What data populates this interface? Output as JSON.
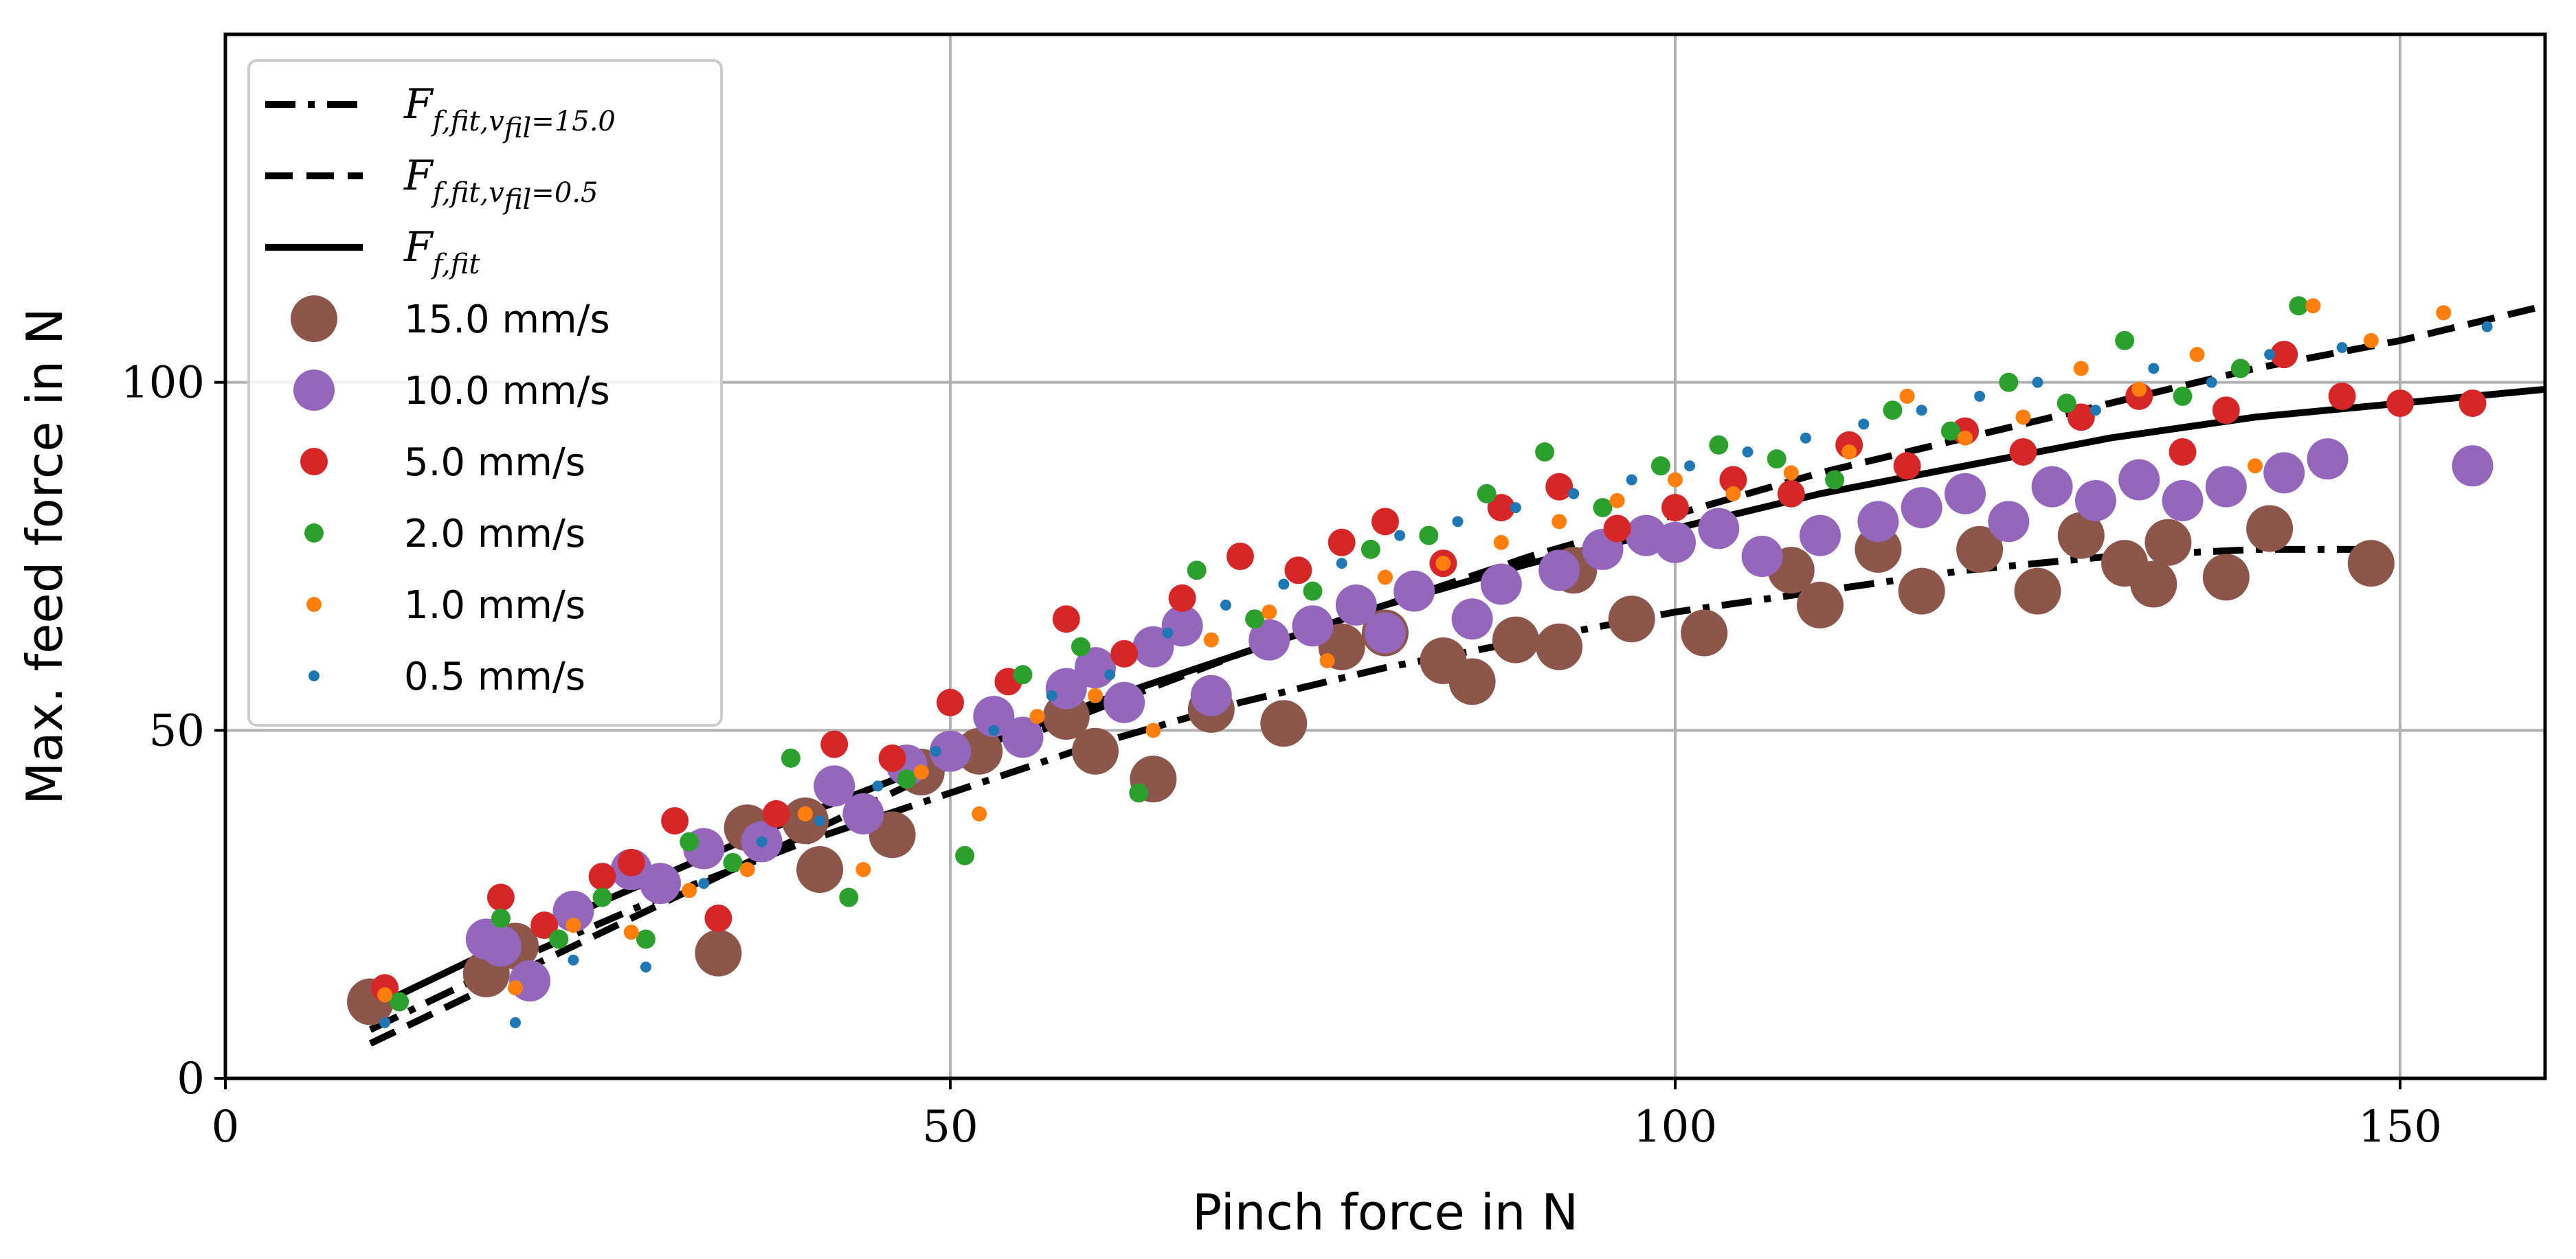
{
  "chart_data": {
    "type": "scatter",
    "xlabel": "Pinch force in N",
    "ylabel": "Max. feed force in N",
    "xlim": [
      0,
      160
    ],
    "ylim": [
      0,
      150
    ],
    "xticks": [
      0,
      50,
      100,
      150
    ],
    "yticks": [
      0,
      50,
      100
    ],
    "grid": true,
    "legend_position": "upper-left",
    "fits": [
      {
        "name": "F_{f,fit,v_fil=15.0}",
        "label_main": "F",
        "label_sub": "f,fit,v",
        "label_subsub": "fil",
        "label_tail": "=15.0",
        "style": "dashdot",
        "x": [
          10,
          20,
          30,
          40,
          50,
          60,
          70,
          80,
          90,
          100,
          110,
          120,
          130,
          140,
          148
        ],
        "y": [
          7,
          17,
          26,
          34,
          41,
          48,
          54,
          59,
          63,
          67,
          70,
          73,
          75,
          76,
          76
        ]
      },
      {
        "name": "F_{f,fit,v_fil=0.5}",
        "label_main": "F",
        "label_sub": "f,fit,v",
        "label_subsub": "fil",
        "label_tail": "=0.5",
        "style": "dashed",
        "x": [
          10,
          20,
          30,
          40,
          50,
          60,
          70,
          80,
          90,
          100,
          110,
          120,
          130,
          140,
          150,
          160
        ],
        "y": [
          5,
          15,
          25,
          35,
          45,
          53,
          61,
          68,
          75,
          81,
          87,
          92,
          97,
          102,
          106,
          111
        ]
      },
      {
        "name": "F_{f,fit}",
        "label_main": "F",
        "label_sub": "f,fit",
        "label_subsub": "",
        "label_tail": "",
        "style": "solid",
        "x": [
          10,
          20,
          30,
          40,
          50,
          60,
          70,
          80,
          90,
          100,
          110,
          120,
          130,
          140,
          150,
          160
        ],
        "y": [
          10,
          20,
          29,
          38,
          46,
          54,
          61,
          68,
          74,
          79,
          84,
          88,
          92,
          95,
          97,
          99
        ]
      }
    ],
    "series": [
      {
        "name": "15.0 mm/s",
        "color": "#8c564b",
        "size": 34,
        "x": [
          10,
          18,
          20,
          34,
          36,
          40,
          41,
          46,
          48,
          52,
          58,
          60,
          64,
          68,
          73,
          77,
          80,
          84,
          86,
          89,
          92,
          93,
          97,
          102,
          108,
          110,
          114,
          117,
          121,
          125,
          128,
          131,
          133,
          134,
          138,
          141,
          148
        ],
        "y": [
          11,
          15,
          19,
          18,
          36,
          37,
          30,
          35,
          44,
          47,
          52,
          47,
          43,
          53,
          51,
          62,
          64,
          60,
          57,
          63,
          62,
          73,
          66,
          64,
          73,
          68,
          76,
          70,
          76,
          70,
          78,
          74,
          71,
          77,
          72,
          79,
          74
        ]
      },
      {
        "name": "10.0 mm/s",
        "color": "#9467bd",
        "size": 30,
        "x": [
          18,
          19,
          21,
          24,
          28,
          30,
          33,
          37,
          42,
          44,
          47,
          50,
          53,
          55,
          58,
          60,
          62,
          64,
          66,
          68,
          72,
          75,
          78,
          80,
          82,
          86,
          88,
          92,
          95,
          98,
          100,
          103,
          106,
          110,
          114,
          117,
          120,
          123,
          126,
          129,
          132,
          135,
          138,
          142,
          145,
          155
        ],
        "y": [
          20,
          19,
          14,
          24,
          30,
          28,
          33,
          34,
          42,
          38,
          45,
          47,
          52,
          49,
          56,
          59,
          54,
          62,
          65,
          55,
          63,
          65,
          68,
          64,
          70,
          66,
          71,
          73,
          76,
          78,
          77,
          79,
          75,
          78,
          80,
          82,
          84,
          80,
          85,
          83,
          86,
          83,
          85,
          87,
          89,
          88
        ]
      },
      {
        "name": "5.0 mm/s",
        "color": "#d62728",
        "size": 20,
        "x": [
          11,
          19,
          22,
          26,
          28,
          31,
          34,
          38,
          42,
          46,
          50,
          54,
          58,
          62,
          66,
          70,
          74,
          77,
          80,
          84,
          88,
          92,
          96,
          100,
          104,
          108,
          112,
          116,
          120,
          124,
          128,
          132,
          135,
          138,
          142,
          146,
          150,
          155
        ],
        "y": [
          13,
          26,
          22,
          29,
          31,
          37,
          23,
          38,
          48,
          46,
          54,
          57,
          66,
          61,
          69,
          75,
          73,
          77,
          80,
          74,
          82,
          85,
          79,
          82,
          86,
          84,
          91,
          88,
          93,
          90,
          95,
          98,
          90,
          96,
          104,
          98,
          97,
          97
        ]
      },
      {
        "name": "2.0 mm/s",
        "color": "#2ca02c",
        "size": 14,
        "x": [
          12,
          19,
          23,
          26,
          29,
          32,
          35,
          39,
          43,
          47,
          51,
          55,
          59,
          63,
          67,
          71,
          75,
          79,
          83,
          87,
          91,
          95,
          99,
          103,
          107,
          111,
          115,
          119,
          123,
          127,
          131,
          135,
          139,
          143
        ],
        "y": [
          11,
          23,
          20,
          26,
          20,
          34,
          31,
          46,
          26,
          43,
          32,
          58,
          62,
          41,
          73,
          66,
          70,
          76,
          78,
          84,
          90,
          82,
          88,
          91,
          89,
          86,
          96,
          93,
          100,
          97,
          106,
          98,
          102,
          111
        ]
      },
      {
        "name": "1.0 mm/s",
        "color": "#ff7f0e",
        "size": 11,
        "x": [
          11,
          20,
          24,
          28,
          32,
          36,
          40,
          44,
          48,
          52,
          56,
          60,
          64,
          68,
          72,
          76,
          80,
          84,
          88,
          92,
          96,
          100,
          104,
          108,
          112,
          116,
          120,
          124,
          128,
          132,
          136,
          140,
          144,
          148,
          153
        ],
        "y": [
          12,
          13,
          22,
          21,
          27,
          30,
          38,
          30,
          44,
          38,
          52,
          55,
          50,
          63,
          67,
          60,
          72,
          74,
          77,
          80,
          83,
          86,
          84,
          87,
          90,
          98,
          92,
          95,
          102,
          99,
          104,
          88,
          111,
          106,
          110
        ]
      },
      {
        "name": "0.5 mm/s",
        "color": "#1f77b4",
        "size": 8,
        "x": [
          11,
          20,
          24,
          29,
          33,
          37,
          41,
          45,
          49,
          53,
          57,
          61,
          65,
          69,
          73,
          77,
          81,
          85,
          89,
          93,
          97,
          101,
          105,
          109,
          113,
          117,
          121,
          125,
          129,
          133,
          137,
          141,
          146,
          156
        ],
        "y": [
          8,
          8,
          17,
          16,
          28,
          34,
          37,
          42,
          47,
          50,
          55,
          58,
          64,
          68,
          71,
          74,
          78,
          80,
          82,
          84,
          86,
          88,
          90,
          92,
          94,
          96,
          98,
          100,
          96,
          102,
          100,
          104,
          105,
          108
        ]
      }
    ]
  }
}
